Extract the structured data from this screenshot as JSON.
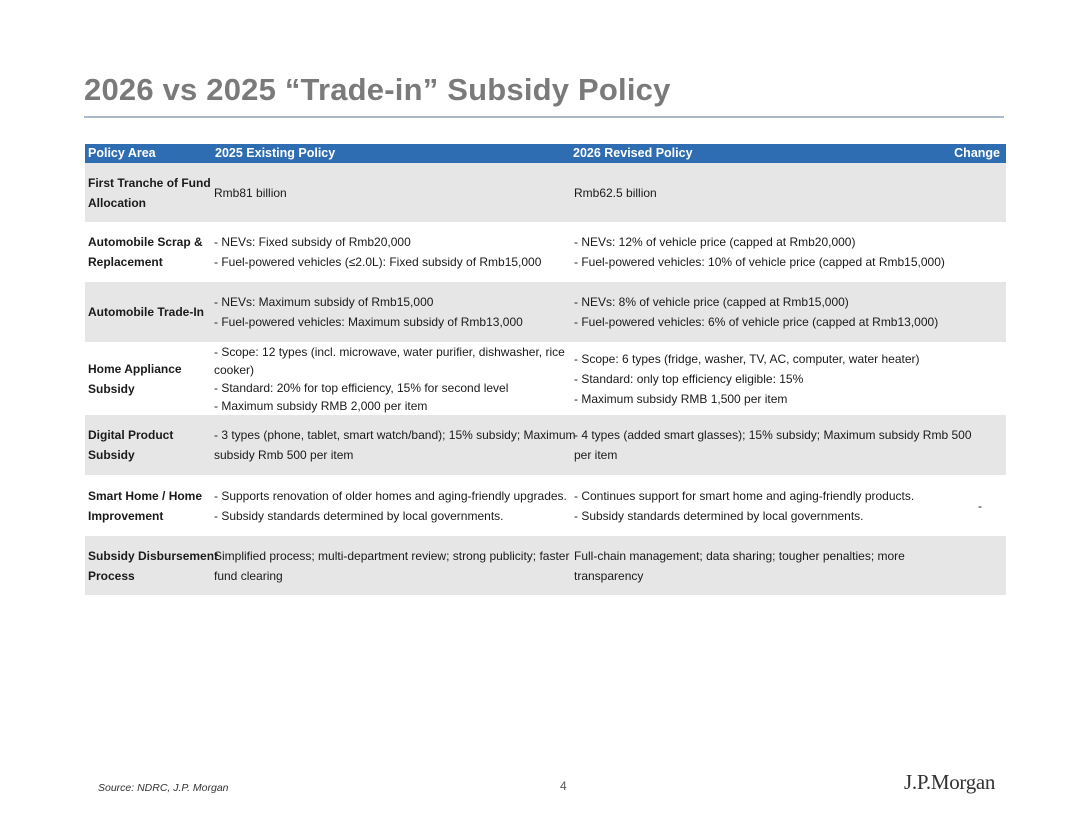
{
  "page": {
    "title": "2026 vs 2025 “Trade-in” Subsidy Policy",
    "colors": {
      "header_bg": "#2f6db3",
      "row_shade": "#e6e6e6",
      "title": "#7a7a7a",
      "rule": "#a9b7c9"
    }
  },
  "table": {
    "headers": [
      "Policy Area",
      "2025 Existing Policy",
      "2026 Revised Policy",
      "Change"
    ],
    "rows": [
      {
        "area": [
          "First Tranche of Fund",
          "Allocation"
        ],
        "p2025": [
          "Rmb81 billion"
        ],
        "p2026": [
          "Rmb62.5 billion"
        ],
        "change": ""
      },
      {
        "area": [
          "Automobile Scrap &",
          "Replacement"
        ],
        "p2025": [
          "- NEVs: Fixed subsidy of Rmb20,000",
          "- Fuel-powered vehicles (≤2.0L): Fixed subsidy of Rmb15,000"
        ],
        "p2026": [
          "- NEVs: 12% of vehicle price (capped at Rmb20,000)",
          "- Fuel-powered vehicles: 10% of vehicle price (capped at Rmb15,000)"
        ],
        "change": ""
      },
      {
        "area": [
          "Automobile Trade-In"
        ],
        "p2025": [
          "- NEVs: Maximum subsidy of Rmb15,000",
          "- Fuel-powered vehicles: Maximum subsidy of Rmb13,000"
        ],
        "p2026": [
          "- NEVs: 8% of vehicle price (capped at Rmb15,000)",
          "- Fuel-powered vehicles: 6% of vehicle price (capped at Rmb13,000)"
        ],
        "change": ""
      },
      {
        "area": [
          "Home Appliance",
          "Subsidy"
        ],
        "p2025": [
          "- Scope: 12 types (incl. microwave, water purifier, dishwasher, rice",
          "cooker)",
          "- Standard: 20% for top efficiency, 15% for second level",
          "- Maximum subsidy RMB 2,000 per item"
        ],
        "p2026": [
          "- Scope: 6 types (fridge, washer, TV, AC, computer, water heater)",
          "- Standard: only top efficiency eligible: 15%",
          "- Maximum subsidy RMB 1,500 per item"
        ],
        "change": ""
      },
      {
        "area": [
          "Digital Product",
          "Subsidy"
        ],
        "p2025": [
          "- 3 types (phone, tablet, smart watch/band); 15% subsidy; Maximum",
          "subsidy Rmb 500 per item"
        ],
        "p2026": [
          "- 4 types (added smart glasses); 15% subsidy; Maximum subsidy Rmb 500",
          "per item"
        ],
        "change": ""
      },
      {
        "area": [
          "Smart Home / Home",
          "Improvement"
        ],
        "p2025": [
          "- Supports renovation of older homes and aging-friendly upgrades.",
          "- Subsidy standards determined by local governments."
        ],
        "p2026": [
          "- Continues support for smart home and aging-friendly products.",
          "- Subsidy standards determined by local governments."
        ],
        "change": "-"
      },
      {
        "area": [
          "Subsidy Disbursement",
          "Process"
        ],
        "p2025": [
          "Simplified process; multi-department review; strong publicity; faster",
          "fund clearing"
        ],
        "p2026": [
          "Full-chain management; data sharing; tougher penalties; more",
          "transparency"
        ],
        "change": ""
      }
    ]
  },
  "footer": {
    "source": "Source: NDRC, J.P. Morgan",
    "page_number": "4",
    "logo_text": "J.P.Morgan"
  }
}
